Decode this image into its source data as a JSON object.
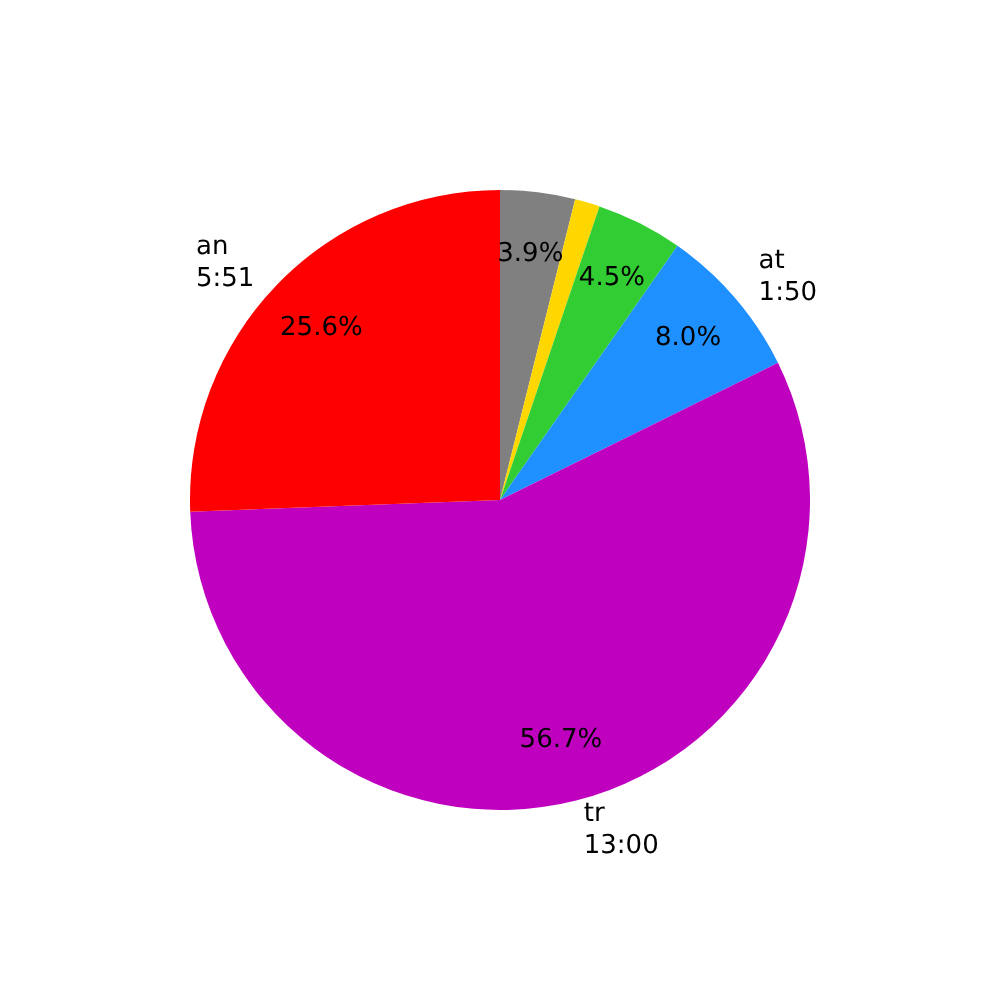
{
  "chart_data": {
    "type": "pie",
    "categories": [
      "an\n5:51",
      "tr\n13:00",
      "at\n1:50",
      null,
      null,
      null
    ],
    "values": [
      25.6,
      56.7,
      8.0,
      4.5,
      1.3,
      3.9
    ],
    "colors": [
      "#ff0000",
      "#bf00bf",
      "#1e90ff",
      "#32cd32",
      "#ffd700",
      "#808080"
    ],
    "value_labels": [
      "25.6%",
      "56.7%",
      "8.0%",
      "4.5%",
      null,
      "3.9%"
    ],
    "legend": false
  }
}
